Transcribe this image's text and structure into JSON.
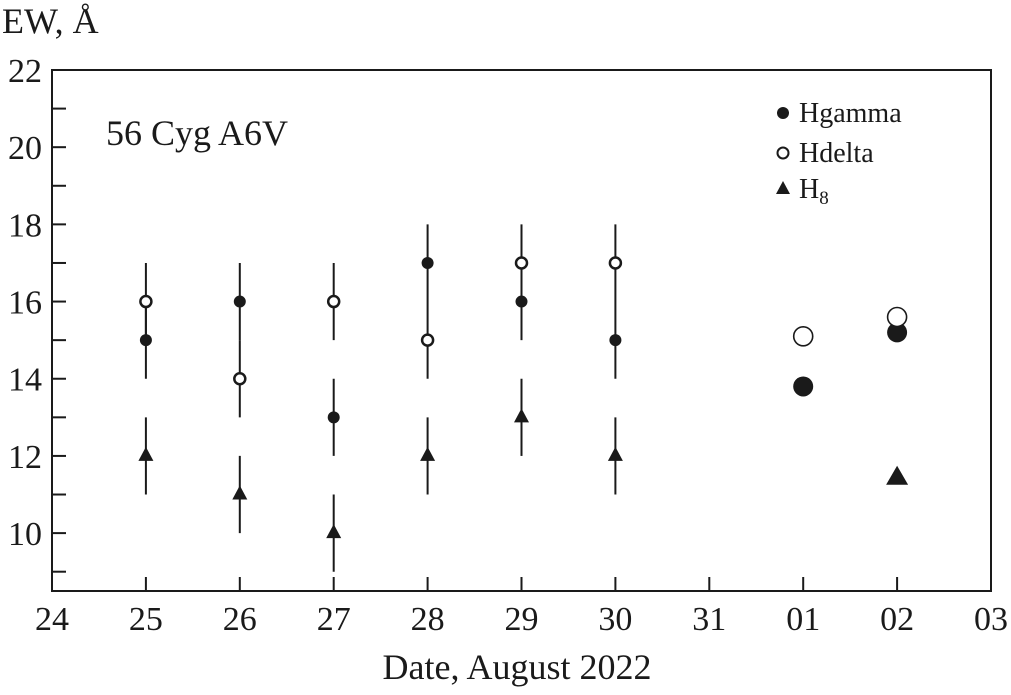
{
  "chart_data": {
    "type": "scatter",
    "title": "56 Cyg A6V",
    "xlabel": "Date, August 2022",
    "ylabel": "EW, Å",
    "x_ticks": [
      "24",
      "25",
      "26",
      "27",
      "28",
      "29",
      "30",
      "31",
      "01",
      "02",
      "03"
    ],
    "y_ticks": [
      "10",
      "12",
      "14",
      "16",
      "18",
      "20",
      "22"
    ],
    "xlim": [
      24,
      34
    ],
    "ylim": [
      8.5,
      22
    ],
    "grid": false,
    "legend_position": "top-right",
    "series": [
      {
        "name": "Hgamma",
        "marker": "filled-circle",
        "points": [
          {
            "x": 25,
            "y": 15,
            "err": 1
          },
          {
            "x": 26,
            "y": 16,
            "err": 1
          },
          {
            "x": 27,
            "y": 13,
            "err": 1
          },
          {
            "x": 28,
            "y": 17,
            "err": 1
          },
          {
            "x": 29,
            "y": 16,
            "err": 1
          },
          {
            "x": 30,
            "y": 15,
            "err": 1
          },
          {
            "x": 32,
            "y": 13.8
          },
          {
            "x": 33,
            "y": 15.2
          }
        ]
      },
      {
        "name": "Hdelta",
        "marker": "open-circle",
        "points": [
          {
            "x": 25,
            "y": 16,
            "err": 1
          },
          {
            "x": 26,
            "y": 14,
            "err": 1
          },
          {
            "x": 27,
            "y": 16,
            "err": 1
          },
          {
            "x": 28,
            "y": 15,
            "err": 1
          },
          {
            "x": 29,
            "y": 17,
            "err": 1
          },
          {
            "x": 30,
            "y": 17,
            "err": 1
          },
          {
            "x": 32,
            "y": 15.1
          },
          {
            "x": 33,
            "y": 15.6
          }
        ]
      },
      {
        "name": "H",
        "name_subscript": "8",
        "marker": "filled-triangle",
        "points": [
          {
            "x": 25,
            "y": 12,
            "err": 1
          },
          {
            "x": 26,
            "y": 11,
            "err": 1
          },
          {
            "x": 27,
            "y": 10,
            "err": 1
          },
          {
            "x": 28,
            "y": 12,
            "err": 1
          },
          {
            "x": 29,
            "y": 13,
            "err": 1
          },
          {
            "x": 30,
            "y": 12,
            "err": 1
          },
          {
            "x": 33,
            "y": 11.5
          }
        ]
      }
    ]
  }
}
